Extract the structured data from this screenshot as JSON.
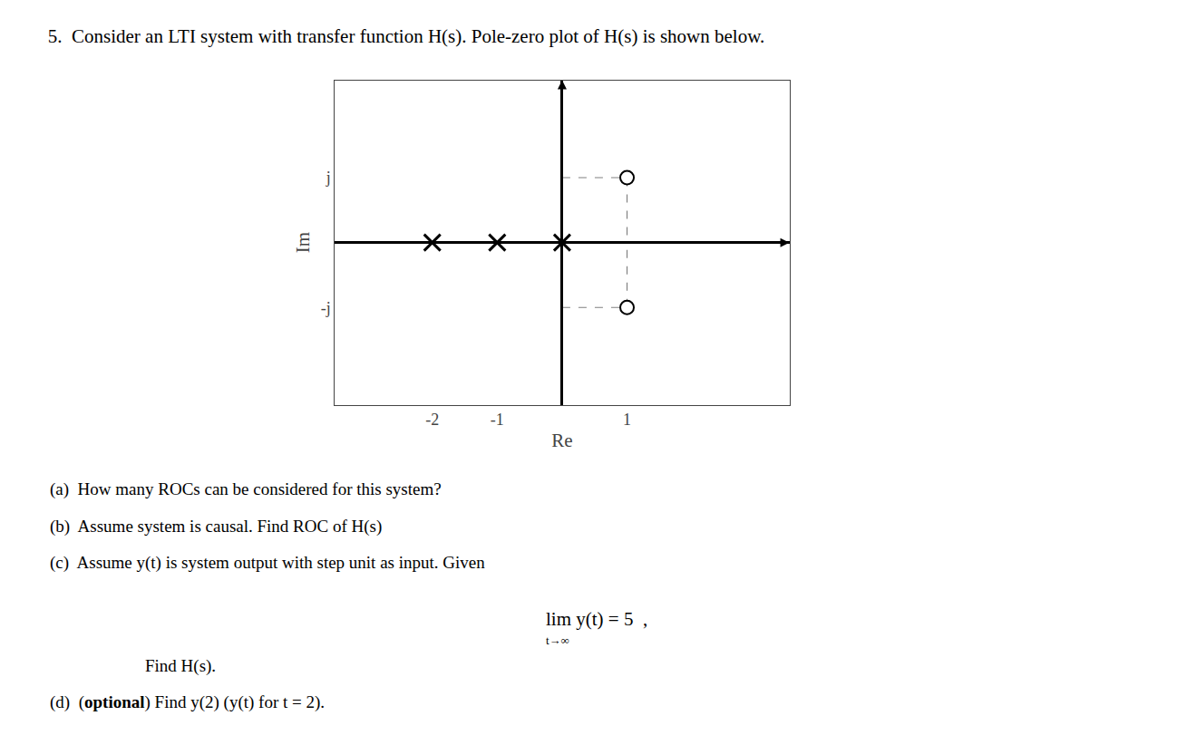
{
  "chart_data": {
    "type": "scatter",
    "title": "5.  Consider an LTI system with transfer function H(s). Pole-zero plot of H(s) is shown below.",
    "xlabel": "Re",
    "ylabel": "Im",
    "xlim": [
      -3.5,
      3.5
    ],
    "ylim": [
      -2.5,
      2.5
    ],
    "xticks": [
      -2,
      -1,
      1
    ],
    "yticks": [
      {
        "value": -1,
        "label": "-j"
      },
      {
        "value": 1,
        "label": "j"
      }
    ],
    "grid": false,
    "series": [
      {
        "marker": "x",
        "color": "black",
        "x": [
          -2,
          -1,
          0
        ],
        "values": [
          0,
          0,
          0
        ]
      },
      {
        "marker": "circle",
        "color": "black",
        "x": [
          1,
          1
        ],
        "values": [
          1,
          -1
        ]
      }
    ],
    "annotations": [
      "(a)  How many ROCs can be considered for this system?",
      "(b)  Assume system is causal. Find ROC of H(s)",
      "(c)  Assume y(t) is system output with step unit as input. Given",
      "lim y(t) = 5  ,",
      "t→∞",
      "Find H(s).",
      "(d)  (optional) Find y(2) (y(t) for t = 2)."
    ]
  }
}
